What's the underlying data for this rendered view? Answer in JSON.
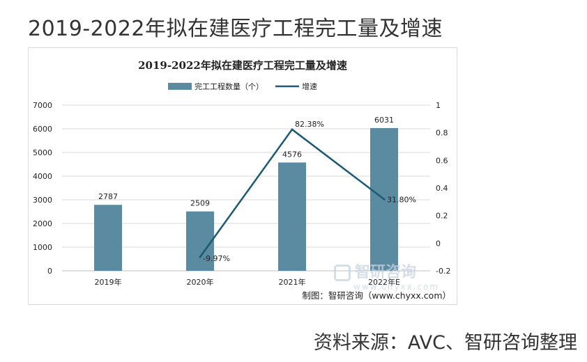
{
  "page_title": "2019-2022年拟在建医疗工程完工量及增速",
  "source": "资料来源：AVC、智研咨询整理",
  "watermark": {
    "name": "智研咨询",
    "url": "www.chyxx.com"
  },
  "credit": "制图：智研咨询（www.chyxx.com）",
  "colors": {
    "bar": "#5b8ba1",
    "line": "#1a5a72",
    "grid": "#d9d9d9",
    "text": "#222222"
  },
  "chart_data": {
    "type": "bar",
    "title": "2019-2022年拟在建医疗工程完工量及增速",
    "categories": [
      "2019年",
      "2020年",
      "2021年",
      "2022年E"
    ],
    "series": [
      {
        "name": "完工工程数量（个）",
        "type": "bar",
        "axis": "left",
        "values": [
          2787,
          2509,
          4576,
          6031
        ],
        "labels": [
          "2787",
          "2509",
          "4576",
          "6031"
        ]
      },
      {
        "name": "增速",
        "type": "line",
        "axis": "right",
        "values": [
          null,
          -0.0997,
          0.8238,
          0.318
        ],
        "labels": [
          "",
          "-9.97%",
          "82.38%",
          "31.80%"
        ]
      }
    ],
    "y_left": {
      "min": 0,
      "max": 7000,
      "ticks": [
        "0",
        "1000",
        "2000",
        "3000",
        "4000",
        "5000",
        "6000",
        "7000"
      ]
    },
    "y_right": {
      "min": -0.2,
      "max": 1,
      "ticks": [
        "-0.2",
        "0",
        "0.2",
        "0.4",
        "0.6",
        "0.8",
        "1"
      ]
    },
    "legend_position": "top",
    "grid": true
  }
}
